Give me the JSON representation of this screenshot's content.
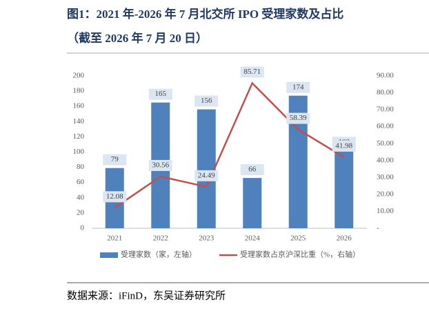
{
  "chart_data": {
    "type": "bar_line",
    "title": "图1：2021 年-2026 年 7 月北交所 IPO 受理家数及占比",
    "subtitle": "（截至 2026 年 7 月 20 日）",
    "source": "数据来源：iFinD，东吴证券研究所",
    "categories": [
      "2021",
      "2022",
      "2023",
      "2024",
      "2025",
      "2026"
    ],
    "series": [
      {
        "name": "受理家数（家，左轴）",
        "color": "#4f81bd",
        "type": "bar",
        "values": [
          79,
          165,
          156,
          66,
          174,
          102
        ]
      },
      {
        "name": "受理家数占京沪深比重（%，右轴）",
        "color": "#c0504d",
        "type": "line",
        "axis": "y2",
        "values": [
          12.08,
          30.56,
          24.49,
          85.71,
          58.39,
          41.98
        ]
      }
    ],
    "ylim": [
      0,
      200
    ],
    "yticks": [
      0,
      20,
      40,
      60,
      80,
      100,
      120,
      140,
      160,
      180,
      200
    ],
    "y2lim": [
      0,
      90
    ],
    "y2ticks": [
      {
        "value": 0,
        "label": "-"
      },
      {
        "value": 10,
        "label": "10.00"
      },
      {
        "value": 20,
        "label": "20.00"
      },
      {
        "value": 30,
        "label": "30.00"
      },
      {
        "value": 40,
        "label": "40.00"
      },
      {
        "value": 50,
        "label": "50.00"
      },
      {
        "value": 60,
        "label": "60.00"
      },
      {
        "value": 70,
        "label": "70.00"
      },
      {
        "value": 80,
        "label": "80.00"
      },
      {
        "value": 90,
        "label": "90.00"
      }
    ],
    "grid": false,
    "legend": "bottom"
  }
}
